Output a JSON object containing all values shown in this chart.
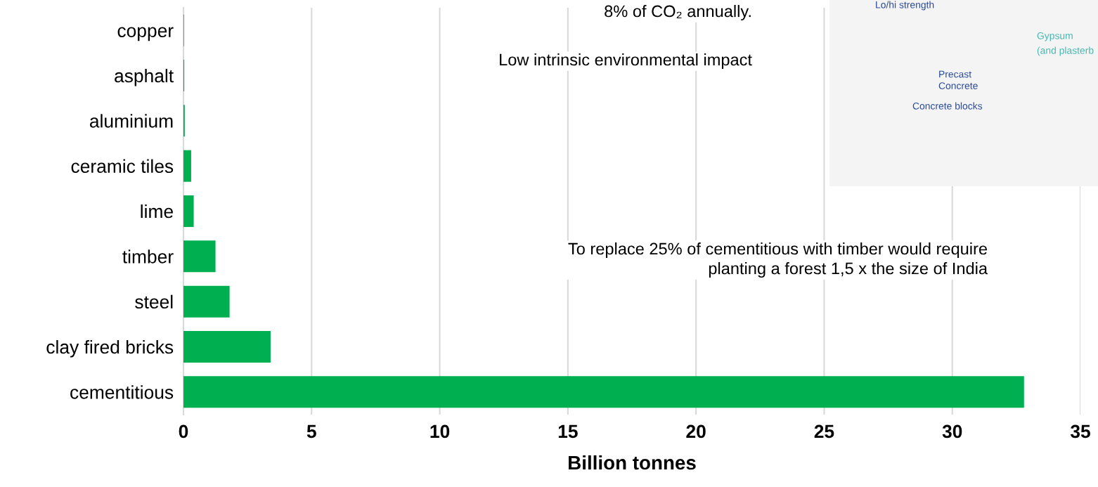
{
  "chart_data": {
    "type": "bar",
    "orientation": "horizontal",
    "xlabel": "Billion tonnes",
    "categories": [
      "copper",
      "asphalt",
      "aluminium",
      "ceramic tiles",
      "lime",
      "timber",
      "steel",
      "clay fired bricks",
      "cementitious"
    ],
    "values": [
      0.02,
      0.03,
      0.05,
      0.3,
      0.4,
      1.25,
      1.8,
      3.4,
      32.8
    ],
    "color": "#00b050",
    "xlim": [
      0,
      35
    ],
    "xticks": [
      0,
      5,
      10,
      15,
      20,
      25,
      30,
      35
    ],
    "grid": "x",
    "legend": false,
    "annotations": [
      "8% of CO₂ annually.",
      "Low intrinsic environmental impact",
      "To replace 25% of cementitious with timber would require\nplanting a forest 1,5 x the size of India",
      "Lo/hi strength",
      "Precast\nConcrete",
      "Concrete blocks",
      "Gypsum",
      "(and plasterb"
    ]
  }
}
